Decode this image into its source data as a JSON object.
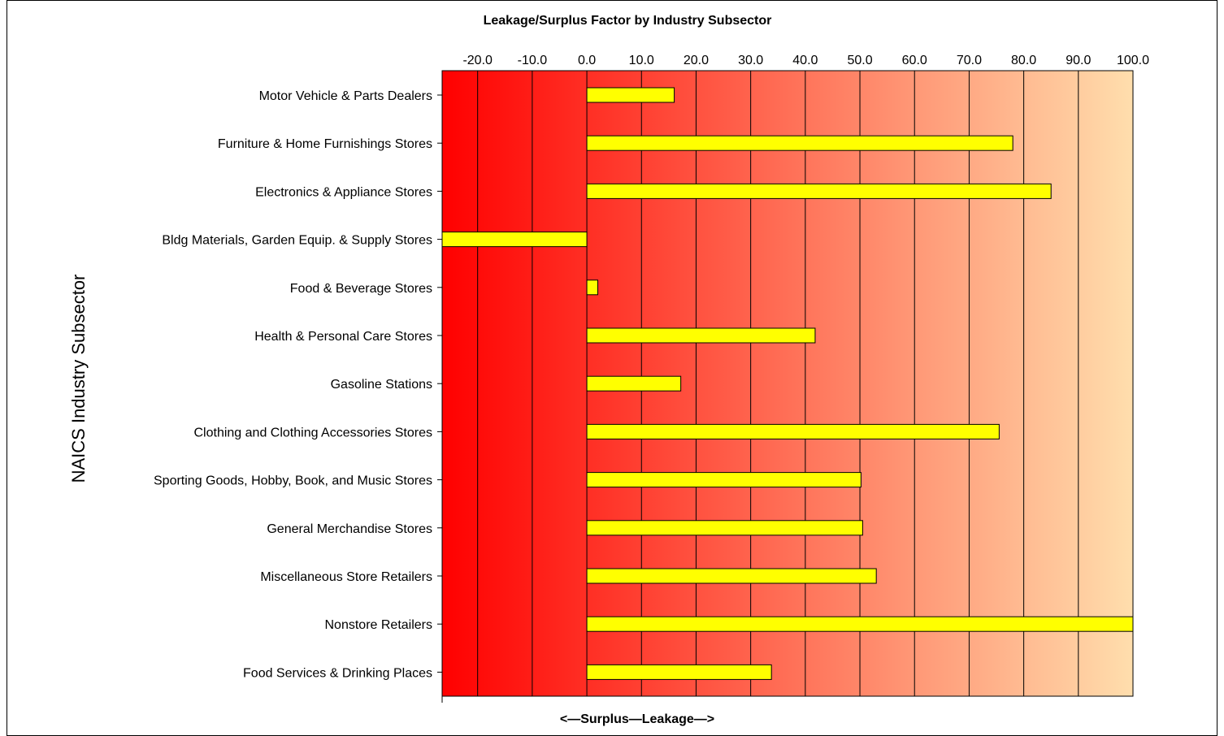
{
  "chart_data": {
    "type": "bar",
    "orientation": "horizontal",
    "title": "Leakage/Surplus Factor by Industry Subsector",
    "xlabel": "<—Surplus—Leakage—>",
    "ylabel": "NAICS Industry Subsector",
    "xlim": [
      -26.5,
      100
    ],
    "x_ticks": [
      "-20.0",
      "-10.0",
      "0.0",
      "10.0",
      "20.0",
      "30.0",
      "40.0",
      "50.0",
      "60.0",
      "70.0",
      "80.0",
      "90.0",
      "100.0"
    ],
    "x_tick_values": [
      -20,
      -10,
      0,
      10,
      20,
      30,
      40,
      50,
      60,
      70,
      80,
      90,
      100
    ],
    "grid": true,
    "categories": [
      "Motor Vehicle & Parts Dealers",
      "Furniture & Home Furnishings Stores",
      "Electronics & Appliance Stores",
      "Bldg Materials, Garden Equip. & Supply Stores",
      "Food & Beverage Stores",
      "Health & Personal Care Stores",
      "Gasoline Stations",
      "Clothing and Clothing Accessories Stores",
      "Sporting Goods, Hobby, Book, and Music Stores",
      "General Merchandise Stores",
      "Miscellaneous Store Retailers",
      "Nonstore Retailers",
      "Food Services & Drinking Places"
    ],
    "values": [
      16.0,
      78.0,
      85.0,
      -26.5,
      2.0,
      41.8,
      17.2,
      75.5,
      50.2,
      50.5,
      53.0,
      100.0,
      33.8
    ],
    "colors": {
      "bar_fill": "#ffff00",
      "bar_stroke": "#000000",
      "gradient_left": "#ff0000",
      "gradient_right": "#ffdead"
    }
  }
}
